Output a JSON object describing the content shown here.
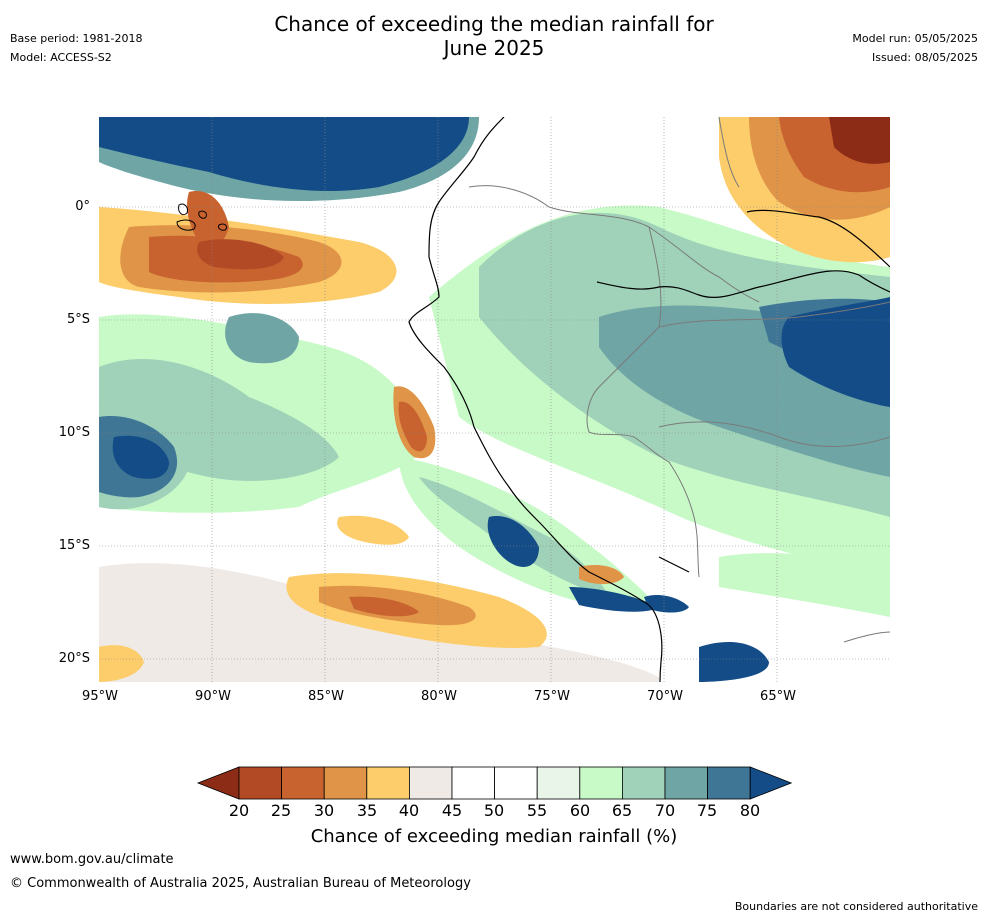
{
  "header": {
    "title_line1": "Chance of exceeding the median rainfall for",
    "title_line2": "June 2025",
    "base_period": "Base period: 1981-2018",
    "model": "Model: ACCESS-S2",
    "model_run": "Model run: 05/05/2025",
    "issued": "Issued: 08/05/2025"
  },
  "map": {
    "y_ticks": [
      "0°",
      "5°S",
      "10°S",
      "15°S",
      "20°S"
    ],
    "x_ticks": [
      "95°W",
      "90°W",
      "85°W",
      "80°W",
      "75°W",
      "70°W",
      "65°W"
    ],
    "extent": {
      "lon_min": -95,
      "lon_max": -60,
      "lat_min": -21,
      "lat_max": 4
    }
  },
  "colorbar": {
    "labels": [
      "20",
      "25",
      "30",
      "35",
      "40",
      "45",
      "50",
      "55",
      "60",
      "65",
      "70",
      "75",
      "80"
    ],
    "colors": [
      "#8c2c16",
      "#b34a26",
      "#c8632f",
      "#e09448",
      "#fccd6a",
      "#efeae6",
      "#ffffff",
      "#ffffff",
      "#e8f5e8",
      "#c8fac8",
      "#9fd2b8",
      "#6fa6a5",
      "#3f7696",
      "#134c87"
    ],
    "title": "Chance of exceeding median rainfall (%)"
  },
  "footer": {
    "url": "www.bom.gov.au/climate",
    "copyright": "© Commonwealth of Australia 2025, Australian Bureau of Meteorology",
    "disclaimer": "Boundaries are not considered authoritative"
  }
}
